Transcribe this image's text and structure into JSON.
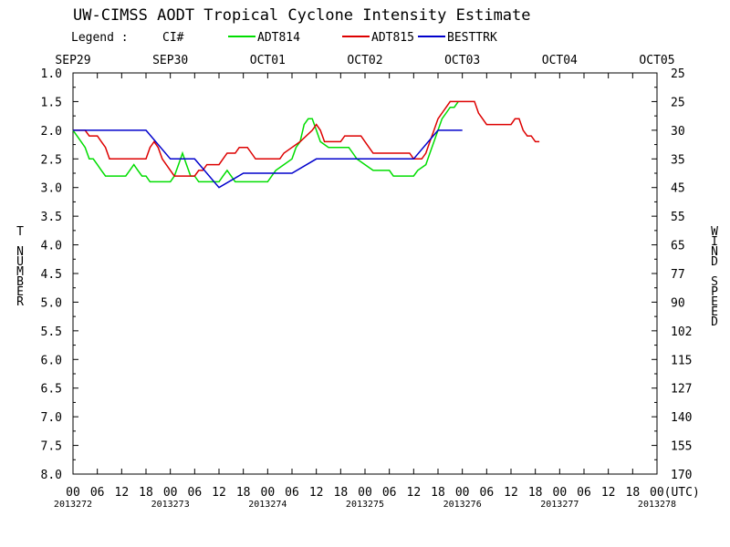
{
  "title": "UW-CIMSS AODT Tropical Cyclone Intensity Estimate",
  "legend": {
    "label": "Legend :",
    "ci_label": "CI#",
    "entries": [
      {
        "name": "ADT814",
        "color": "#00dd00"
      },
      {
        "name": "ADT815",
        "color": "#dd0000"
      },
      {
        "name": "BESTTRK",
        "color": "#0000cc"
      }
    ]
  },
  "left_axis_label": "T NUMBER",
  "right_axis_label": "WIND SPEED",
  "top_dates": [
    "SEP29",
    "SEP30",
    "OCT01",
    "OCT02",
    "OCT03",
    "OCT04",
    "OCT05"
  ],
  "y_ticks": [
    "1.0",
    "1.5",
    "2.0",
    "2.5",
    "3.0",
    "3.5",
    "4.0",
    "4.5",
    "5.0",
    "5.5",
    "6.0",
    "6.5",
    "7.0",
    "7.5",
    "8.0"
  ],
  "wind_ticks": [
    "25",
    "25",
    "30",
    "35",
    "45",
    "55",
    "65",
    "77",
    "90",
    "102",
    "115",
    "127",
    "140",
    "155",
    "170"
  ],
  "x_hour_ticks": [
    "00",
    "06",
    "12",
    "18",
    "00",
    "06",
    "12",
    "18",
    "00",
    "06",
    "12",
    "18",
    "00",
    "06",
    "12",
    "18",
    "00",
    "06",
    "12",
    "18",
    "00",
    "06",
    "12",
    "18",
    "00(UTC)"
  ],
  "julian_dates": [
    "2013272",
    "2013273",
    "2013274",
    "2013275",
    "2013276",
    "2013277",
    "2013278"
  ],
  "chart_data": {
    "type": "line",
    "title": "UW-CIMSS AODT Tropical Cyclone Intensity Estimate",
    "xlabel": "UTC",
    "ylabel": "T NUMBER",
    "y2label": "WIND SPEED",
    "xlim": [
      0,
      144
    ],
    "ylim": [
      8.0,
      1.0
    ],
    "grid": false,
    "legend": "top",
    "series": [
      {
        "name": "ADT814",
        "color": "#00dd00",
        "points": [
          [
            0,
            2.0
          ],
          [
            1,
            2.1
          ],
          [
            2,
            2.2
          ],
          [
            3,
            2.3
          ],
          [
            4,
            2.5
          ],
          [
            5,
            2.5
          ],
          [
            6,
            2.6
          ],
          [
            7,
            2.7
          ],
          [
            8,
            2.8
          ],
          [
            13,
            2.8
          ],
          [
            14,
            2.7
          ],
          [
            15,
            2.6
          ],
          [
            16,
            2.7
          ],
          [
            17,
            2.8
          ],
          [
            18,
            2.8
          ],
          [
            19,
            2.9
          ],
          [
            24,
            2.9
          ],
          [
            25,
            2.8
          ],
          [
            26,
            2.6
          ],
          [
            27,
            2.4
          ],
          [
            28,
            2.6
          ],
          [
            29,
            2.8
          ],
          [
            30,
            2.8
          ],
          [
            31,
            2.9
          ],
          [
            36,
            2.9
          ],
          [
            37,
            2.8
          ],
          [
            38,
            2.7
          ],
          [
            39,
            2.8
          ],
          [
            40,
            2.9
          ],
          [
            48,
            2.9
          ],
          [
            49,
            2.8
          ],
          [
            50,
            2.7
          ],
          [
            52,
            2.6
          ],
          [
            54,
            2.5
          ],
          [
            55,
            2.3
          ],
          [
            56,
            2.2
          ],
          [
            57,
            1.9
          ],
          [
            58,
            1.8
          ],
          [
            59,
            1.8
          ],
          [
            60,
            2.0
          ],
          [
            61,
            2.2
          ],
          [
            63,
            2.3
          ],
          [
            68,
            2.3
          ],
          [
            69,
            2.4
          ],
          [
            70,
            2.5
          ],
          [
            72,
            2.6
          ],
          [
            74,
            2.7
          ],
          [
            78,
            2.7
          ],
          [
            79,
            2.8
          ],
          [
            84,
            2.8
          ],
          [
            85,
            2.7
          ],
          [
            87,
            2.6
          ],
          [
            88,
            2.4
          ],
          [
            89,
            2.2
          ],
          [
            90,
            2.0
          ],
          [
            91,
            1.8
          ],
          [
            92,
            1.7
          ],
          [
            93,
            1.6
          ],
          [
            94,
            1.6
          ],
          [
            95,
            1.5
          ]
        ]
      },
      {
        "name": "ADT815",
        "color": "#dd0000",
        "points": [
          [
            0,
            2.0
          ],
          [
            3,
            2.0
          ],
          [
            4,
            2.1
          ],
          [
            6,
            2.1
          ],
          [
            7,
            2.2
          ],
          [
            8,
            2.3
          ],
          [
            9,
            2.5
          ],
          [
            18,
            2.5
          ],
          [
            19,
            2.3
          ],
          [
            20,
            2.2
          ],
          [
            21,
            2.3
          ],
          [
            22,
            2.5
          ],
          [
            24,
            2.7
          ],
          [
            25,
            2.8
          ],
          [
            30,
            2.8
          ],
          [
            31,
            2.7
          ],
          [
            32,
            2.7
          ],
          [
            33,
            2.6
          ],
          [
            36,
            2.6
          ],
          [
            37,
            2.5
          ],
          [
            38,
            2.4
          ],
          [
            40,
            2.4
          ],
          [
            41,
            2.3
          ],
          [
            43,
            2.3
          ],
          [
            44,
            2.4
          ],
          [
            45,
            2.5
          ],
          [
            51,
            2.5
          ],
          [
            52,
            2.4
          ],
          [
            54,
            2.3
          ],
          [
            56,
            2.2
          ],
          [
            59,
            2.0
          ],
          [
            60,
            1.9
          ],
          [
            61,
            2.0
          ],
          [
            62,
            2.2
          ],
          [
            66,
            2.2
          ],
          [
            67,
            2.1
          ],
          [
            71,
            2.1
          ],
          [
            72,
            2.2
          ],
          [
            73,
            2.3
          ],
          [
            74,
            2.4
          ],
          [
            83,
            2.4
          ],
          [
            84,
            2.5
          ],
          [
            86,
            2.5
          ],
          [
            87,
            2.4
          ],
          [
            88,
            2.2
          ],
          [
            89,
            2.0
          ],
          [
            90,
            1.8
          ],
          [
            91,
            1.7
          ],
          [
            92,
            1.6
          ],
          [
            93,
            1.5
          ],
          [
            99,
            1.5
          ],
          [
            100,
            1.7
          ],
          [
            102,
            1.9
          ],
          [
            108,
            1.9
          ],
          [
            109,
            1.8
          ],
          [
            110,
            1.8
          ],
          [
            111,
            2.0
          ],
          [
            112,
            2.1
          ],
          [
            113,
            2.1
          ],
          [
            114,
            2.2
          ],
          [
            115,
            2.2
          ]
        ]
      },
      {
        "name": "BESTTRK",
        "color": "#0000cc",
        "points": [
          [
            0,
            2.0
          ],
          [
            18,
            2.0
          ],
          [
            24,
            2.5
          ],
          [
            30,
            2.5
          ],
          [
            36,
            3.0
          ],
          [
            42,
            2.75
          ],
          [
            54,
            2.75
          ],
          [
            60,
            2.5
          ],
          [
            84,
            2.5
          ],
          [
            90,
            2.0
          ],
          [
            96,
            2.0
          ]
        ]
      }
    ]
  }
}
